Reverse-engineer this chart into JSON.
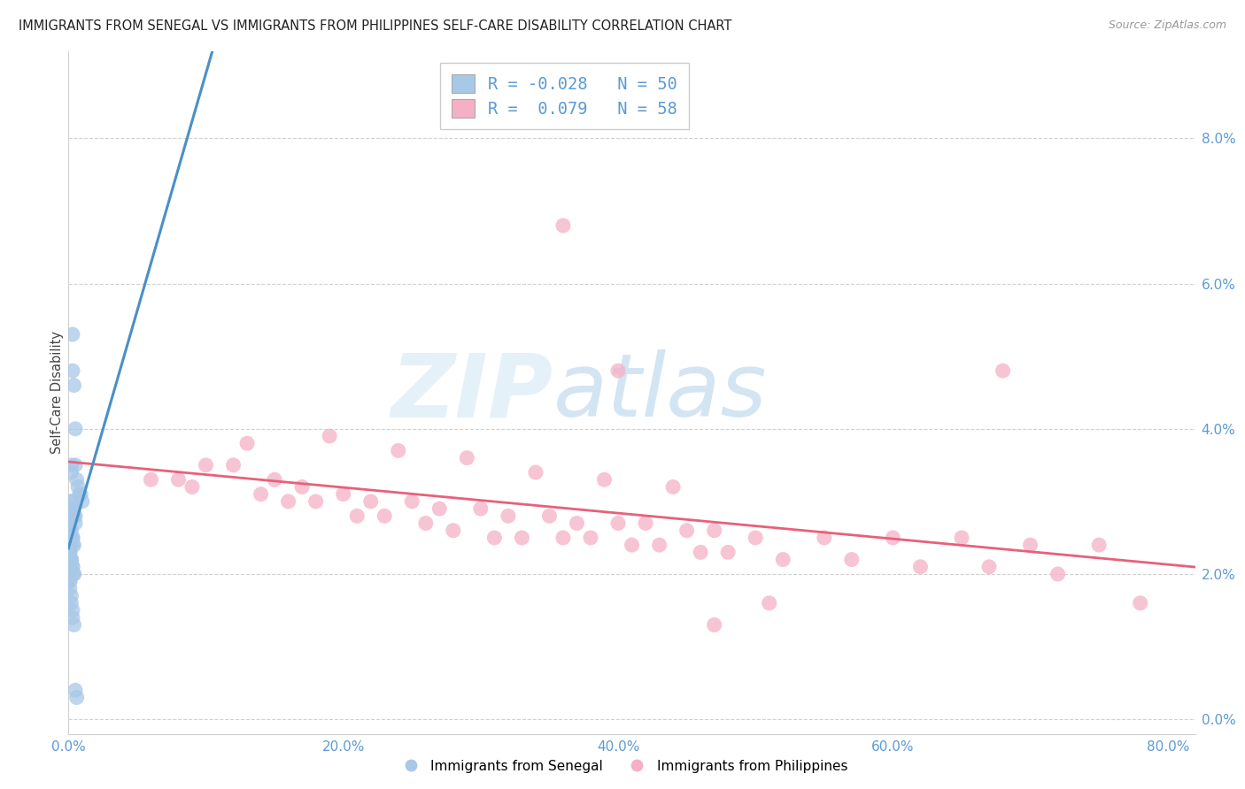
{
  "title": "IMMIGRANTS FROM SENEGAL VS IMMIGRANTS FROM PHILIPPINES SELF-CARE DISABILITY CORRELATION CHART",
  "source": "Source: ZipAtlas.com",
  "ylabel": "Self-Care Disability",
  "xlabel_ticks": [
    "0.0%",
    "20.0%",
    "40.0%",
    "60.0%",
    "80.0%"
  ],
  "ylabel_ticks": [
    "0.0%",
    "2.0%",
    "4.0%",
    "6.0%",
    "8.0%"
  ],
  "xlim": [
    0.0,
    0.82
  ],
  "ylim": [
    -0.002,
    0.092
  ],
  "R_senegal": -0.028,
  "N_senegal": 50,
  "R_philippines": 0.079,
  "N_philippines": 58,
  "color_senegal": "#a8c8e8",
  "color_philippines": "#f5b0c5",
  "color_senegal_line_solid": "#4a90c8",
  "color_senegal_line_dash": "#7ab8d8",
  "color_philippines_line": "#e8607a",
  "watermark_zip": "ZIP",
  "watermark_atlas": "atlas",
  "legend_label_blue": "R = -0.028   N = 50",
  "legend_label_pink": "R =  0.079   N = 58",
  "senegal_x": [
    0.003,
    0.003,
    0.004,
    0.005,
    0.005,
    0.006,
    0.007,
    0.008,
    0.009,
    0.01,
    0.002,
    0.002,
    0.002,
    0.003,
    0.003,
    0.004,
    0.004,
    0.004,
    0.005,
    0.005,
    0.001,
    0.001,
    0.001,
    0.002,
    0.002,
    0.002,
    0.003,
    0.003,
    0.003,
    0.004,
    0.001,
    0.001,
    0.001,
    0.002,
    0.002,
    0.002,
    0.003,
    0.003,
    0.004,
    0.004,
    0.001,
    0.001,
    0.001,
    0.002,
    0.002,
    0.003,
    0.003,
    0.004,
    0.005,
    0.006
  ],
  "senegal_y": [
    0.053,
    0.048,
    0.046,
    0.04,
    0.035,
    0.033,
    0.032,
    0.031,
    0.031,
    0.03,
    0.035,
    0.034,
    0.03,
    0.03,
    0.029,
    0.029,
    0.028,
    0.028,
    0.028,
    0.027,
    0.027,
    0.027,
    0.026,
    0.026,
    0.025,
    0.025,
    0.025,
    0.025,
    0.024,
    0.024,
    0.024,
    0.023,
    0.023,
    0.022,
    0.022,
    0.022,
    0.021,
    0.021,
    0.02,
    0.02,
    0.019,
    0.019,
    0.018,
    0.017,
    0.016,
    0.015,
    0.014,
    0.013,
    0.004,
    0.003
  ],
  "philippines_x": [
    0.36,
    0.4,
    0.68,
    0.47,
    0.51,
    0.1,
    0.12,
    0.15,
    0.17,
    0.2,
    0.22,
    0.25,
    0.27,
    0.3,
    0.32,
    0.35,
    0.37,
    0.4,
    0.42,
    0.45,
    0.47,
    0.5,
    0.55,
    0.6,
    0.65,
    0.7,
    0.75,
    0.08,
    0.06,
    0.09,
    0.14,
    0.16,
    0.18,
    0.21,
    0.23,
    0.26,
    0.28,
    0.31,
    0.33,
    0.36,
    0.38,
    0.41,
    0.43,
    0.46,
    0.48,
    0.52,
    0.57,
    0.62,
    0.67,
    0.72,
    0.78,
    0.13,
    0.19,
    0.24,
    0.29,
    0.34,
    0.39,
    0.44
  ],
  "philippines_y": [
    0.068,
    0.048,
    0.048,
    0.013,
    0.016,
    0.035,
    0.035,
    0.033,
    0.032,
    0.031,
    0.03,
    0.03,
    0.029,
    0.029,
    0.028,
    0.028,
    0.027,
    0.027,
    0.027,
    0.026,
    0.026,
    0.025,
    0.025,
    0.025,
    0.025,
    0.024,
    0.024,
    0.033,
    0.033,
    0.032,
    0.031,
    0.03,
    0.03,
    0.028,
    0.028,
    0.027,
    0.026,
    0.025,
    0.025,
    0.025,
    0.025,
    0.024,
    0.024,
    0.023,
    0.023,
    0.022,
    0.022,
    0.021,
    0.021,
    0.02,
    0.016,
    0.038,
    0.039,
    0.037,
    0.036,
    0.034,
    0.033,
    0.032
  ]
}
